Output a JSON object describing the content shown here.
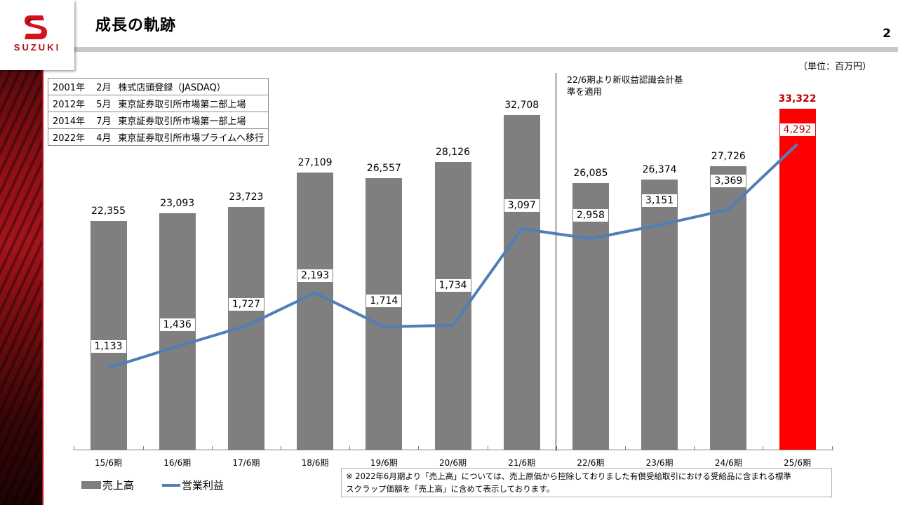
{
  "brand": {
    "logo_text": "SUZUKI",
    "logo_color": "#b0101a"
  },
  "header": {
    "title": "成長の軌跡",
    "page_number": "2"
  },
  "unit_label": "（単位：百万円）",
  "history": [
    {
      "year": "2001年",
      "month": "2月",
      "event": "株式店頭登録（JASDAQ）"
    },
    {
      "year": "2012年",
      "month": "5月",
      "event": "東京証券取引所市場第二部上場"
    },
    {
      "year": "2014年",
      "month": "7月",
      "event": "東京証券取引所市場第一部上場"
    },
    {
      "year": "2022年",
      "month": "4月",
      "event": "東京証券取引所市場プライムへ移行"
    }
  ],
  "accounting_note": {
    "line1": "22/6期より新収益認識会計基",
    "line2": "準を適用"
  },
  "legend": {
    "sales": "売上高",
    "operating_profit": "営業利益"
  },
  "footnote": {
    "line1": "※ 2022年6月期より「売上高」については、売上原価から控除しておりました有償受給取引における受給品に含まれる標準",
    "line2": "スクラップ価額を「売上高」に含めて表示しております。"
  },
  "colors": {
    "bar": "#7f7f7f",
    "highlight_bar": "#ff0000",
    "line": "#4f7fb8",
    "highlight_text": "#c00000"
  },
  "chart_data": {
    "type": "bar",
    "title": "成長の軌跡",
    "xlabel": "",
    "ylabel": "百万円",
    "categories": [
      "15/6期",
      "16/6期",
      "17/6期",
      "18/6期",
      "19/6期",
      "20/6期",
      "21/6期",
      "22/6期",
      "23/6期",
      "24/6期",
      "25/6期"
    ],
    "series": [
      {
        "name": "売上高",
        "type": "bar",
        "values": [
          22355,
          23093,
          23723,
          27109,
          26557,
          28126,
          32708,
          26085,
          26374,
          27726,
          33322
        ]
      },
      {
        "name": "営業利益",
        "type": "line",
        "values": [
          1133,
          1436,
          1727,
          2193,
          1714,
          1734,
          3097,
          2958,
          3151,
          3369,
          4292
        ]
      }
    ],
    "labels": {
      "sales": [
        "22,355",
        "23,093",
        "23,723",
        "27,109",
        "26,557",
        "28,126",
        "32,708",
        "26,085",
        "26,374",
        "27,726",
        "33,322"
      ],
      "operating_profit": [
        "1,133",
        "1,436",
        "1,727",
        "2,193",
        "1,714",
        "1,734",
        "3,097",
        "2,958",
        "3,151",
        "3,369",
        "4,292"
      ]
    },
    "highlight_index": 10,
    "annotations": [
      "22/6期より新収益認識会計基準を適用"
    ],
    "legend_position": "bottom-left",
    "grid": false
  }
}
